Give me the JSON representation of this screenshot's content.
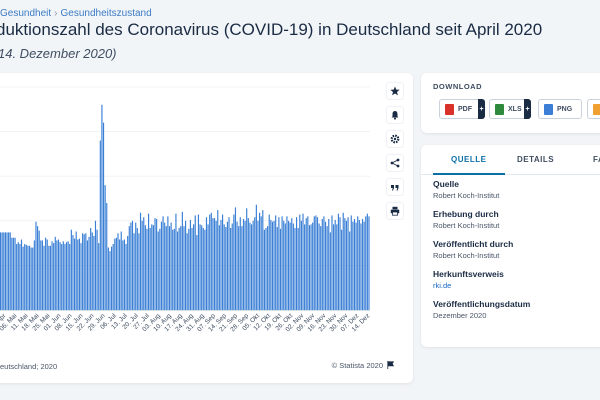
{
  "breadcrumb": {
    "items": [
      "Gesundheit",
      "Gesundheitszustand"
    ],
    "separator": "›"
  },
  "header": {
    "title": "duktionszahl des Coronavirus (COVID-19) in Deutschland seit April 2020",
    "subtitle": "14. Dezember 2020)"
  },
  "chart": {
    "source_note": "eutschland; 2020",
    "copyright": "© Statista 2020"
  },
  "chart_data": {
    "type": "bar",
    "bar_color": "#3a7fd5",
    "tick_labels": [
      "0. Apr",
      "06. Mai",
      "11. Mai",
      "18. Mai",
      "25. Mai",
      "01. Jun",
      "08. Jun",
      "15. Jun",
      "22. Jun",
      "29. Jun",
      "06. Jul",
      "13. Jul",
      "20. Jul",
      "27. Jul",
      "03. Aug",
      "10. Aug",
      "17. Aug",
      "24. Aug",
      "31. Aug",
      "07. Sep",
      "14. Sep",
      "21. Sep",
      "28. Sep",
      "05. Okt",
      "12. Okt",
      "19. Okt",
      "26. Okt",
      "02. Nov",
      "09. Nov",
      "16. Nov",
      "23. Nov",
      "30. Nov",
      "07. Dez",
      "14. Dez"
    ],
    "values": [
      0.87,
      0.87,
      0.87,
      0.87,
      0.87,
      0.87,
      0.87,
      0.81,
      0.81,
      0.81,
      0.74,
      0.76,
      0.74,
      0.79,
      0.71,
      0.74,
      0.73,
      0.72,
      0.72,
      0.7,
      0.7,
      0.78,
      0.99,
      0.94,
      0.89,
      0.78,
      0.78,
      0.72,
      0.81,
      0.79,
      0.72,
      0.72,
      0.77,
      0.75,
      0.82,
      0.78,
      0.79,
      0.76,
      0.74,
      0.77,
      0.74,
      0.76,
      0.77,
      0.74,
      0.9,
      0.84,
      0.8,
      0.88,
      0.79,
      0.8,
      0.75,
      0.86,
      0.85,
      0.86,
      0.78,
      0.82,
      0.92,
      0.87,
      0.83,
      1.0,
      0.9,
      0.75,
      1.9,
      2.3,
      2.1,
      1.4,
      1.2,
      0.7,
      0.66,
      0.71,
      0.74,
      0.8,
      0.81,
      0.86,
      0.79,
      0.88,
      0.78,
      0.79,
      0.74,
      0.83,
      0.94,
      0.98,
      1.0,
      0.86,
      0.98,
      0.92,
      0.86,
      1.09,
      1.0,
      1.04,
      0.95,
      0.91,
      1.08,
      0.92,
      0.96,
      0.95,
      1.03,
      1.02,
      0.88,
      0.91,
      0.99,
      1.05,
      0.98,
      0.94,
      1.05,
      0.94,
      0.98,
      0.9,
      0.91,
      1.08,
      0.88,
      0.92,
      0.94,
      1.1,
      0.94,
      1.0,
      0.86,
      0.91,
      1.01,
      0.92,
      0.96,
      1.06,
      0.84,
      1.07,
      0.96,
      0.95,
      0.92,
      0.9,
      1.04,
      0.96,
      1.07,
      1.09,
      1.03,
      1.03,
      1.0,
      1.12,
      0.95,
      1.01,
      1.07,
      0.96,
      0.93,
      0.99,
      1.04,
      0.92,
      0.97,
      1.07,
      1.15,
      0.99,
      0.94,
      1.04,
      0.94,
      1.02,
      1.0,
      1.14,
      1.03,
      0.98,
      0.96,
      1.0,
      1.04,
      1.18,
      1.0,
      1.09,
      1.05,
      1.12,
      0.9,
      0.92,
      0.94,
      1.07,
      1.01,
      0.99,
      1.0,
      1.06,
      0.93,
      1.04,
      0.91,
      1.05,
      1.0,
      0.97,
      1.05,
      1.0,
      0.98,
      1.03,
      0.97,
      0.92,
      1.04,
      0.92,
      1.07,
      1.0,
      1.08,
      0.96,
      1.03,
      1.05,
      0.95,
      0.96,
      0.98,
      1.05,
      1.06,
      1.04,
      0.97,
      0.94,
      1.02,
      1.05,
      0.99,
      0.94,
      1.02,
      0.87,
      1.06,
      0.96,
      1.01,
      0.96,
      1.08,
      1.04,
      0.9,
      1.09,
      1.03,
      1.0,
      1.04,
      0.88,
      1.06,
      0.99,
      1.02,
      0.98,
      1.05,
      1.01,
      0.97,
      1.02,
      0.99,
      1.05,
      1.08,
      1.05
    ]
  },
  "toolbar": {
    "icons": [
      "star-icon",
      "bell-icon",
      "gear-icon",
      "share-icon",
      "quote-icon",
      "print-icon"
    ]
  },
  "download": {
    "title": "DOWNLOAD",
    "buttons": [
      {
        "label": "PDF",
        "color": "#d9322b",
        "plus": "+"
      },
      {
        "label": "XLS",
        "color": "#2e8b3e",
        "plus": "+"
      },
      {
        "label": "PNG",
        "color": "#3a7fd5"
      }
    ]
  },
  "meta": {
    "tabs": [
      "QUELLE",
      "DETAILS",
      "FA"
    ],
    "items": [
      {
        "label": "Quelle",
        "value": "Robert Koch-Institut"
      },
      {
        "label": "Erhebung durch",
        "value": "Robert Koch-Institut"
      },
      {
        "label": "Veröffentlicht durch",
        "value": "Robert Koch-Institut"
      },
      {
        "label": "Herkunftsverweis",
        "value": "rki.de",
        "link": true
      },
      {
        "label": "Veröffentlichungsdatum",
        "value": "Dezember 2020"
      }
    ]
  }
}
